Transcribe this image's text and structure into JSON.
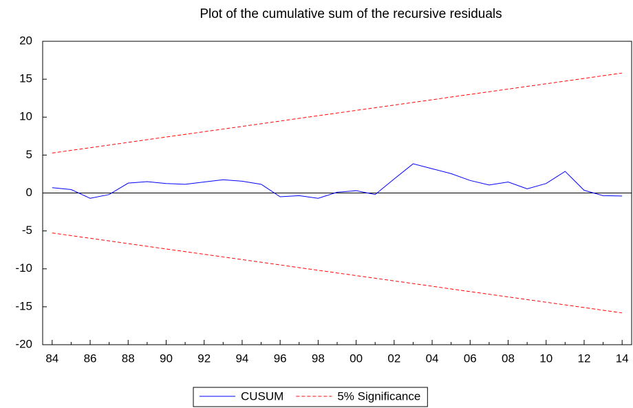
{
  "chart_data": {
    "type": "line",
    "title": "Plot of the cumulative sum of the recursive residuals",
    "categories": [
      "84",
      null,
      "86",
      null,
      "88",
      null,
      "90",
      null,
      "92",
      null,
      "94",
      null,
      "96",
      null,
      "98",
      null,
      "00",
      null,
      "02",
      null,
      "04",
      null,
      "06",
      null,
      "08",
      null,
      "10",
      null,
      "12",
      null,
      "14"
    ],
    "series": [
      {
        "name": "CUSUM",
        "color": "#0000ff",
        "style": "solid",
        "values": [
          0.7,
          0.45,
          -0.7,
          -0.2,
          1.3,
          1.5,
          1.25,
          1.15,
          1.45,
          1.75,
          1.55,
          1.15,
          -0.5,
          -0.35,
          -0.7,
          0.1,
          0.3,
          -0.2,
          1.85,
          3.85,
          3.2,
          2.55,
          1.65,
          1.05,
          1.45,
          0.55,
          1.25,
          2.85,
          0.35,
          -0.35,
          -0.4
        ]
      },
      {
        "name": "5% Significance",
        "color": "#ff0000",
        "style": "dashed",
        "values": [
          5.27,
          5.62,
          5.97,
          6.32,
          6.67,
          7.03,
          7.38,
          7.73,
          8.08,
          8.43,
          8.78,
          9.13,
          9.48,
          9.84,
          10.19,
          10.54,
          10.89,
          11.24,
          11.59,
          11.94,
          12.29,
          12.65,
          13.0,
          13.35,
          13.7,
          14.05,
          14.4,
          14.75,
          15.1,
          15.46,
          15.81
        ]
      },
      {
        "color": "#ff0000",
        "style": "dashed",
        "values": [
          -5.27,
          -5.62,
          -5.97,
          -6.32,
          -6.67,
          -7.03,
          -7.38,
          -7.73,
          -8.08,
          -8.43,
          -8.78,
          -9.13,
          -9.48,
          -9.84,
          -10.19,
          -10.54,
          -10.89,
          -11.24,
          -11.59,
          -11.94,
          -12.29,
          -12.65,
          -13.0,
          -13.35,
          -13.7,
          -14.05,
          -14.4,
          -14.75,
          -15.1,
          -15.46,
          -15.81
        ]
      }
    ],
    "ylim": [
      -20,
      20
    ],
    "yticks": [
      -20,
      -15,
      -10,
      -5,
      0,
      5,
      10,
      15,
      20
    ],
    "grid": false,
    "legend": "bottom"
  }
}
